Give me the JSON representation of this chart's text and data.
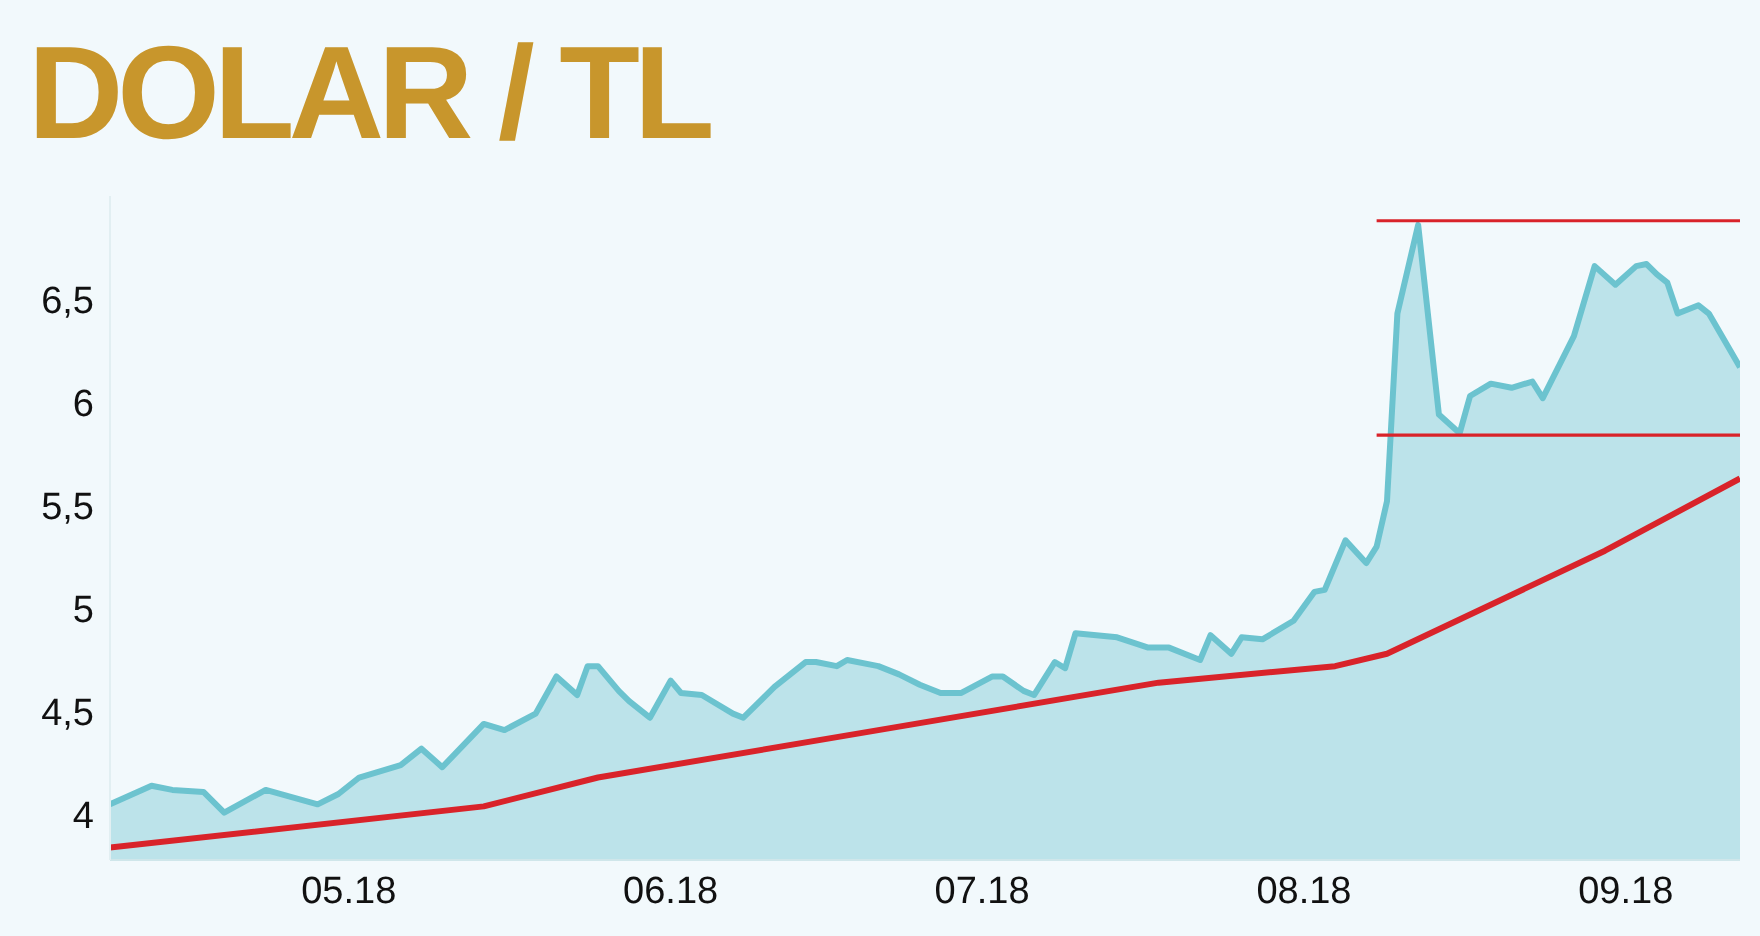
{
  "chart_data": {
    "type": "area",
    "title": "DOLAR / TL",
    "xlim": [
      "2018-04-08",
      "2018-09-12"
    ],
    "xticks": [
      {
        "value": "2018-05-01",
        "label": "05.18"
      },
      {
        "value": "2018-06-01",
        "label": "06.18"
      },
      {
        "value": "2018-07-01",
        "label": "07.18"
      },
      {
        "value": "2018-08-01",
        "label": "08.18"
      },
      {
        "value": "2018-09-01",
        "label": "09.18"
      }
    ],
    "ylim": [
      3.78,
      7.0
    ],
    "yticks": [
      4,
      {
        "value": 4.5,
        "label": "4,5"
      },
      5,
      {
        "value": 5.5,
        "label": "5,5"
      },
      6,
      {
        "value": 6.5,
        "label": "6,5"
      }
    ],
    "grid": false,
    "legend": false,
    "series": [
      {
        "color": "#6cc3cf",
        "x": [
          "2018-04-08",
          "2018-04-12",
          "2018-04-14",
          "2018-04-17",
          "2018-04-19",
          "2018-04-23",
          "2018-04-28",
          "2018-04-30",
          "2018-05-02",
          "2018-05-06",
          "2018-05-08",
          "2018-05-10",
          "2018-05-14",
          "2018-05-16",
          "2018-05-19",
          "2018-05-21",
          "2018-05-23",
          "2018-05-24",
          "2018-05-25",
          "2018-05-27",
          "2018-05-28",
          "2018-05-30",
          "2018-06-01",
          "2018-06-02",
          "2018-06-04",
          "2018-06-07",
          "2018-06-08",
          "2018-06-11",
          "2018-06-14",
          "2018-06-15",
          "2018-06-17",
          "2018-06-18",
          "2018-06-21",
          "2018-06-23",
          "2018-06-25",
          "2018-06-27",
          "2018-06-29",
          "2018-07-02",
          "2018-07-03",
          "2018-07-05",
          "2018-07-06",
          "2018-07-08",
          "2018-07-09",
          "2018-07-10",
          "2018-07-14",
          "2018-07-17",
          "2018-07-19",
          "2018-07-22",
          "2018-07-23",
          "2018-07-25",
          "2018-07-26",
          "2018-07-28",
          "2018-07-31",
          "2018-08-02",
          "2018-08-03",
          "2018-08-05",
          "2018-08-07",
          "2018-08-08",
          "2018-08-09",
          "2018-08-10",
          "2018-08-12",
          "2018-08-14",
          "2018-08-16",
          "2018-08-17",
          "2018-08-19",
          "2018-08-21",
          "2018-08-23",
          "2018-08-24",
          "2018-08-27",
          "2018-08-29",
          "2018-08-31",
          "2018-09-02",
          "2018-09-03",
          "2018-09-04",
          "2018-09-05",
          "2018-09-06",
          "2018-09-08",
          "2018-09-09",
          "2018-09-12"
        ],
        "values": [
          4.05,
          4.14,
          4.12,
          4.11,
          4.01,
          4.12,
          4.05,
          4.1,
          4.18,
          4.24,
          4.32,
          4.23,
          4.44,
          4.41,
          4.49,
          4.67,
          4.58,
          4.72,
          4.72,
          4.6,
          4.55,
          4.47,
          4.65,
          4.59,
          4.58,
          4.49,
          4.47,
          4.62,
          4.74,
          4.74,
          4.72,
          4.75,
          4.72,
          4.68,
          4.63,
          4.59,
          4.59,
          4.67,
          4.67,
          4.6,
          4.58,
          4.74,
          4.71,
          4.88,
          4.86,
          4.81,
          4.81,
          4.75,
          4.87,
          4.78,
          4.86,
          4.85,
          4.94,
          5.08,
          5.09,
          5.33,
          5.22,
          5.3,
          5.52,
          6.43,
          6.86,
          5.94,
          5.85,
          6.03,
          6.09,
          6.07,
          6.1,
          6.02,
          6.32,
          6.66,
          6.57,
          6.66,
          6.67,
          6.62,
          6.58,
          6.43,
          6.47,
          6.43,
          6.17
        ]
      },
      {
        "type": "line",
        "color": "#d9232a",
        "x": [
          "2018-04-08",
          "2018-05-14",
          "2018-05-25",
          "2018-06-21",
          "2018-07-18",
          "2018-08-04",
          "2018-08-09",
          "2018-08-30",
          "2018-09-12"
        ],
        "values": [
          3.84,
          4.04,
          4.18,
          4.41,
          4.64,
          4.72,
          4.78,
          5.28,
          5.63
        ]
      },
      {
        "type": "line",
        "color": "#d9232a",
        "x": [
          "2018-08-08",
          "2018-09-12"
        ],
        "values": [
          6.88,
          6.88
        ]
      },
      {
        "type": "line",
        "color": "#d9232a",
        "x": [
          "2018-08-08",
          "2018-09-12"
        ],
        "values": [
          5.84,
          5.84
        ]
      }
    ]
  }
}
